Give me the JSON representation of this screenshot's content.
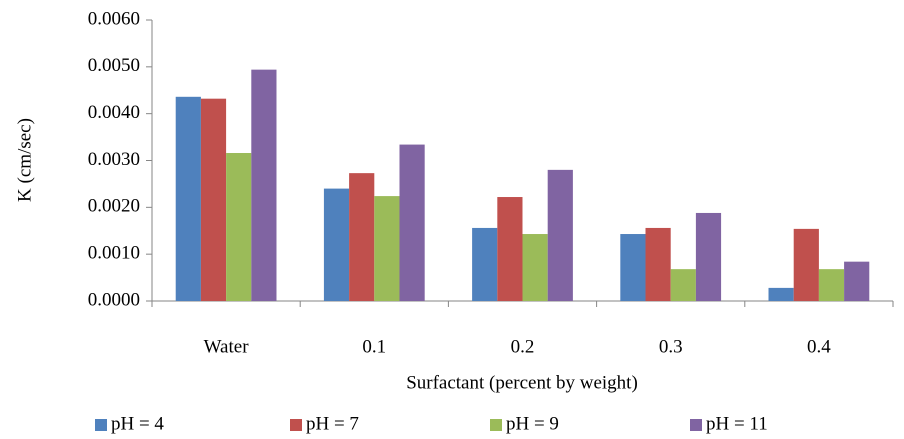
{
  "chart_data": {
    "type": "bar",
    "y_label": "K (cm/sec)",
    "x_label": "Surfactant (percent by weight)",
    "categories": [
      "Water",
      "0.1",
      "0.2",
      "0.3",
      "0.4"
    ],
    "series": [
      {
        "name": "pH = 4",
        "color": "#4f81bd",
        "values": [
          0.00436,
          0.0024,
          0.00156,
          0.00143,
          0.00028
        ]
      },
      {
        "name": "pH = 7",
        "color": "#c0504d",
        "values": [
          0.00432,
          0.00273,
          0.00222,
          0.00156,
          0.00154
        ]
      },
      {
        "name": "pH = 9",
        "color": "#9bbb59",
        "values": [
          0.00316,
          0.00224,
          0.00143,
          0.00068,
          0.00068
        ]
      },
      {
        "name": "pH = 11",
        "color": "#8064a2",
        "values": [
          0.00494,
          0.00334,
          0.0028,
          0.00188,
          0.00084
        ]
      }
    ],
    "ylim": [
      0,
      0.006
    ],
    "yticks": [
      {
        "value": 0,
        "label": "0.0000"
      },
      {
        "value": 0.001,
        "label": "0.0010"
      },
      {
        "value": 0.002,
        "label": "0.0020"
      },
      {
        "value": 0.003,
        "label": "0.0030"
      },
      {
        "value": 0.004,
        "label": "0.0040"
      },
      {
        "value": 0.005,
        "label": "0.0050"
      },
      {
        "value": 0.006,
        "label": "0.0060"
      }
    ],
    "grid": false,
    "legend": "bottom"
  }
}
